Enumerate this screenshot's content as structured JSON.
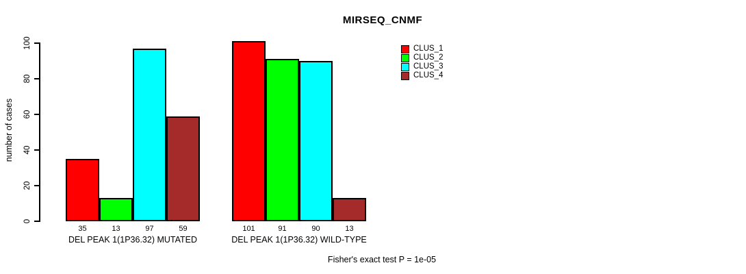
{
  "chart_data": {
    "type": "bar",
    "title": "MIRSEQ_CNMF",
    "ylabel": "number of cases",
    "ylim": [
      0,
      100
    ],
    "yticks": [
      0,
      20,
      40,
      60,
      80,
      100
    ],
    "grid": false,
    "legend_position": "right-inside",
    "categories": [
      "DEL PEAK 1(1P36.32) MUTATED",
      "DEL PEAK 1(1P36.32) WILD-TYPE"
    ],
    "series": [
      {
        "name": "CLUS_1",
        "color": "#ff0000",
        "values": [
          35,
          101
        ]
      },
      {
        "name": "CLUS_2",
        "color": "#00ff00",
        "values": [
          13,
          91
        ]
      },
      {
        "name": "CLUS_3",
        "color": "#00ffff",
        "values": [
          97,
          90
        ]
      },
      {
        "name": "CLUS_4",
        "color": "#a52a2a",
        "values": [
          59,
          13
        ]
      }
    ],
    "bar_value_labels": [
      [
        "35",
        "13",
        "97",
        "59"
      ],
      [
        "101",
        "91",
        "90",
        "13"
      ]
    ],
    "annotation": "Fisher's exact test P = 1e-05"
  }
}
